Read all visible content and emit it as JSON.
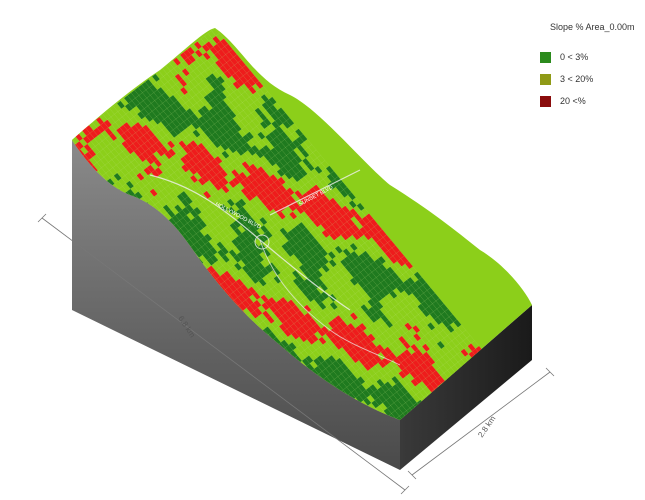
{
  "legend": {
    "title": "Slope % Area_0.00m",
    "items": [
      {
        "label": "0 < 3%",
        "color": "#2b8a1c"
      },
      {
        "label": "3 < 20%",
        "color": "#8f9a16"
      },
      {
        "label": "20 <%",
        "color": "#8a0c0c"
      }
    ]
  },
  "dimensions": {
    "length_label": "6.8 km",
    "width_label": "2.8 km"
  },
  "road_labels": [
    "HOLLYWOOD BLVD",
    "SUNSET BLVD"
  ],
  "colors": {
    "flat": "#1f7a1f",
    "medium": "#8ccf1a",
    "steep": "#ee1c1c",
    "side_left": "#6e6e6e",
    "side_front": "#2a2a2a"
  }
}
